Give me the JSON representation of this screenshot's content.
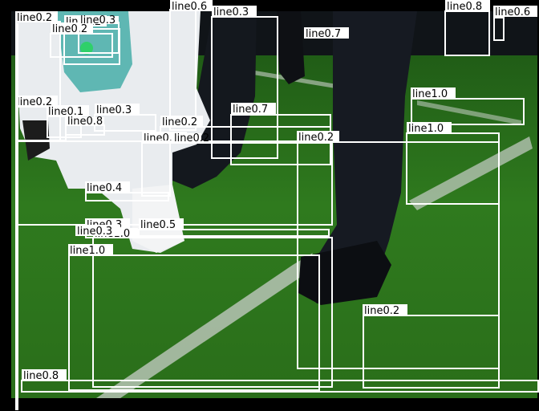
{
  "image": {
    "description_kind": "robot soccer field photo with detection overlays",
    "colors": {
      "field": "#2f7a1e",
      "field_dark": "#1a4f10",
      "line_paint": "#d8ddd8",
      "box": "#ffffff",
      "label_bg": "#ffffff",
      "label_text": "#000000"
    }
  },
  "detections": [
    {
      "label": "line0.2"
    },
    {
      "label": "line0.2"
    },
    {
      "label": "line0.2"
    },
    {
      "label": "line0.3"
    },
    {
      "label": "line0.6"
    },
    {
      "label": "line0.3"
    },
    {
      "label": "line0.7"
    },
    {
      "label": "line0.8"
    },
    {
      "label": "line0.6"
    },
    {
      "label": "line1.0"
    },
    {
      "label": "line0.2"
    },
    {
      "label": "line0.1"
    },
    {
      "label": "line0.3"
    },
    {
      "label": "line0.8"
    },
    {
      "label": "line0.7"
    },
    {
      "label": "line0.2"
    },
    {
      "label": "line1.0"
    },
    {
      "label": "line0.1"
    },
    {
      "label": "line0.2"
    },
    {
      "label": "line0.2"
    },
    {
      "label": "line0.4"
    },
    {
      "label": "line0.3"
    },
    {
      "label": "line0.5"
    },
    {
      "label": "line1.0"
    },
    {
      "label": "line0.3"
    },
    {
      "label": "line1.0"
    },
    {
      "label": "line0.2"
    },
    {
      "label": "line0.8"
    }
  ]
}
